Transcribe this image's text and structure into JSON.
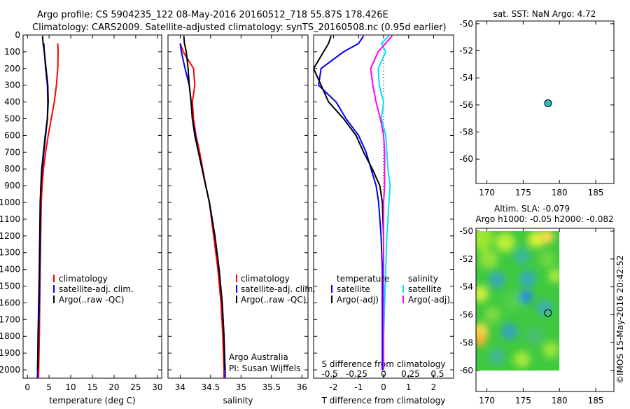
{
  "header": {
    "title_line1": "Argo profile: CS 5904235_122 08-May-2016 20160512_718 55.87S 178.426E",
    "title_line2": "Climatology: CARS2009. Satellite-adjusted climatology: synTS_20160508.nc (0.95d earlier)"
  },
  "colors": {
    "climatology": "#ff0000",
    "satellite": "#0000ff",
    "argo": "#000000",
    "satellite_salinity": "#00e5ee",
    "argo_adj_salinity": "#ff00ff",
    "marker": "#20c0c0"
  },
  "depth_ticks": [
    0,
    100,
    200,
    300,
    400,
    500,
    600,
    700,
    800,
    900,
    1000,
    1100,
    1200,
    1300,
    1400,
    1500,
    1600,
    1700,
    1800,
    1900,
    2000
  ],
  "legends": {
    "profile": [
      "climatology",
      "satellite-adj. clim.",
      "Argo(..raw -QC)"
    ],
    "diff_left_title": "temperature",
    "diff_right_title": "salinity",
    "diff_items": [
      "satellite",
      "Argo(-adj)"
    ]
  },
  "annotations": {
    "argo_australia": "Argo Australia",
    "pi": "PI: Susan Wijffels",
    "imos_stamp": "©IMOS 15-May-2016 20:42:52"
  },
  "chart_data": [
    {
      "type": "line",
      "xlabel": "temperature (deg C)",
      "xlim": [
        -1,
        31
      ],
      "ylim": [
        2050,
        0
      ],
      "xticks": [
        0,
        5,
        10,
        15,
        20,
        25,
        30
      ],
      "series": [
        {
          "name": "climatology",
          "points": [
            [
              7.0,
              50
            ],
            [
              7.1,
              100
            ],
            [
              7.0,
              200
            ],
            [
              6.7,
              300
            ],
            [
              6.2,
              400
            ],
            [
              5.5,
              500
            ],
            [
              4.8,
              600
            ],
            [
              4.2,
              700
            ],
            [
              3.7,
              800
            ],
            [
              3.4,
              900
            ],
            [
              3.2,
              1000
            ],
            [
              3.05,
              1200
            ],
            [
              2.95,
              1400
            ],
            [
              2.85,
              1600
            ],
            [
              2.75,
              1800
            ],
            [
              2.6,
              2000
            ],
            [
              2.55,
              2050
            ]
          ]
        },
        {
          "name": "satellite-adj. clim.",
          "points": [
            [
              3.8,
              50
            ],
            [
              3.9,
              100
            ],
            [
              4.2,
              200
            ],
            [
              4.6,
              300
            ],
            [
              4.7,
              400
            ],
            [
              4.6,
              500
            ],
            [
              4.2,
              600
            ],
            [
              3.8,
              700
            ],
            [
              3.4,
              800
            ],
            [
              3.1,
              900
            ],
            [
              3.0,
              1000
            ],
            [
              2.95,
              1200
            ],
            [
              2.85,
              1400
            ],
            [
              2.75,
              1600
            ],
            [
              2.55,
              1800
            ],
            [
              2.35,
              2000
            ],
            [
              2.3,
              2050
            ]
          ]
        },
        {
          "name": "Argo(..raw -QC)",
          "points": [
            [
              3.5,
              5
            ],
            [
              3.6,
              50
            ],
            [
              3.9,
              100
            ],
            [
              4.3,
              200
            ],
            [
              4.7,
              300
            ],
            [
              4.8,
              400
            ],
            [
              4.6,
              500
            ],
            [
              4.1,
              600
            ],
            [
              3.7,
              700
            ],
            [
              3.3,
              800
            ],
            [
              3.1,
              900
            ],
            [
              2.95,
              1000
            ],
            [
              2.85,
              1200
            ],
            [
              2.75,
              1400
            ],
            [
              2.6,
              1600
            ],
            [
              2.45,
              1800
            ],
            [
              2.35,
              2000
            ]
          ]
        }
      ]
    },
    {
      "type": "line",
      "xlabel": "salinity",
      "xlim": [
        33.8,
        36.1
      ],
      "ylim": [
        2050,
        0
      ],
      "xticks": [
        34,
        34.5,
        35,
        35.5,
        36
      ],
      "series": [
        {
          "name": "climatology",
          "points": [
            [
              34.0,
              50
            ],
            [
              34.05,
              100
            ],
            [
              34.22,
              200
            ],
            [
              34.24,
              300
            ],
            [
              34.2,
              400
            ],
            [
              34.22,
              500
            ],
            [
              34.26,
              600
            ],
            [
              34.32,
              700
            ],
            [
              34.37,
              800
            ],
            [
              34.42,
              900
            ],
            [
              34.48,
              1000
            ],
            [
              34.55,
              1200
            ],
            [
              34.62,
              1400
            ],
            [
              34.67,
              1600
            ],
            [
              34.7,
              1800
            ],
            [
              34.72,
              2000
            ],
            [
              34.72,
              2050
            ]
          ]
        },
        {
          "name": "satellite-adj. clim.",
          "points": [
            [
              34.0,
              50
            ],
            [
              34.02,
              100
            ],
            [
              34.08,
              200
            ],
            [
              34.15,
              300
            ],
            [
              34.18,
              400
            ],
            [
              34.2,
              500
            ],
            [
              34.25,
              600
            ],
            [
              34.3,
              700
            ],
            [
              34.36,
              800
            ],
            [
              34.42,
              900
            ],
            [
              34.48,
              1000
            ],
            [
              34.57,
              1200
            ],
            [
              34.64,
              1400
            ],
            [
              34.69,
              1600
            ],
            [
              34.72,
              1800
            ],
            [
              34.74,
              2000
            ],
            [
              34.74,
              2050
            ]
          ]
        },
        {
          "name": "Argo(..raw -QC)",
          "points": [
            [
              34.06,
              5
            ],
            [
              34.07,
              50
            ],
            [
              34.1,
              100
            ],
            [
              34.13,
              200
            ],
            [
              34.15,
              300
            ],
            [
              34.18,
              400
            ],
            [
              34.2,
              500
            ],
            [
              34.24,
              600
            ],
            [
              34.3,
              700
            ],
            [
              34.36,
              800
            ],
            [
              34.42,
              900
            ],
            [
              34.48,
              1000
            ],
            [
              34.57,
              1200
            ],
            [
              34.64,
              1400
            ],
            [
              34.69,
              1600
            ],
            [
              34.72,
              1800
            ],
            [
              34.73,
              2000
            ]
          ]
        }
      ]
    },
    {
      "type": "line",
      "xlabel_bottom": "T difference from climatology",
      "xlabel_top": "S difference from climatology",
      "xlim_T": [
        -2.8,
        2.8
      ],
      "xticks_T": [
        -2,
        -1,
        0,
        1,
        2
      ],
      "xticks_S": [
        -0.5,
        -0.25,
        0,
        0.25,
        0.5
      ],
      "ylim": [
        2050,
        0
      ],
      "series": [
        {
          "name": "satellite",
          "variable": "temperature",
          "points": [
            [
              -0.8,
              5
            ],
            [
              -1.0,
              50
            ],
            [
              -1.6,
              100
            ],
            [
              -2.5,
              200
            ],
            [
              -2.6,
              300
            ],
            [
              -1.9,
              400
            ],
            [
              -1.5,
              500
            ],
            [
              -1.0,
              600
            ],
            [
              -0.7,
              700
            ],
            [
              -0.5,
              800
            ],
            [
              -0.3,
              900
            ],
            [
              -0.2,
              1000
            ],
            [
              -0.1,
              1200
            ],
            [
              -0.05,
              1400
            ],
            [
              -0.05,
              1600
            ],
            [
              -0.05,
              1800
            ],
            [
              -0.05,
              2000
            ]
          ]
        },
        {
          "name": "Argo(-adj)",
          "variable": "temperature",
          "points": [
            [
              -2.1,
              5
            ],
            [
              -2.2,
              50
            ],
            [
              -2.4,
              100
            ],
            [
              -2.8,
              200
            ],
            [
              -2.5,
              300
            ],
            [
              -2.2,
              400
            ],
            [
              -1.6,
              500
            ],
            [
              -1.1,
              600
            ],
            [
              -0.8,
              700
            ],
            [
              -0.45,
              800
            ],
            [
              -0.15,
              900
            ],
            [
              -0.05,
              1000
            ],
            [
              0.0,
              1200
            ],
            [
              0.0,
              1400
            ],
            [
              0.0,
              1600
            ],
            [
              0.0,
              1800
            ],
            [
              0.0,
              2000
            ]
          ]
        },
        {
          "name": "satellite",
          "variable": "salinity",
          "points": [
            [
              0.05,
              5
            ],
            [
              -0.02,
              50
            ],
            [
              0.02,
              100
            ],
            [
              -0.05,
              200
            ],
            [
              -0.04,
              300
            ],
            [
              0.0,
              400
            ],
            [
              -0.02,
              500
            ],
            [
              0.02,
              600
            ],
            [
              0.03,
              700
            ],
            [
              0.04,
              800
            ],
            [
              0.06,
              900
            ],
            [
              0.05,
              1000
            ],
            [
              0.03,
              1200
            ],
            [
              0.02,
              1400
            ],
            [
              0.01,
              1600
            ],
            [
              0.0,
              1800
            ],
            [
              0.0,
              2000
            ]
          ]
        },
        {
          "name": "Argo(-adj)",
          "variable": "salinity",
          "points": [
            [
              0.08,
              5
            ],
            [
              -0.05,
              100
            ],
            [
              -0.12,
              200
            ],
            [
              -0.1,
              300
            ],
            [
              -0.07,
              400
            ],
            [
              -0.03,
              500
            ],
            [
              0.0,
              600
            ],
            [
              0.01,
              700
            ],
            [
              0.01,
              800
            ],
            [
              0.01,
              900
            ],
            [
              0.0,
              1000
            ],
            [
              0.0,
              1200
            ],
            [
              0.0,
              1400
            ],
            [
              0.0,
              1600
            ],
            [
              0.0,
              1800
            ],
            [
              0.0,
              2000
            ]
          ]
        }
      ]
    },
    {
      "type": "scatter",
      "title": "sat. SST: NaN Argo: 4.72",
      "xlim": [
        168.5,
        187.5
      ],
      "ylim": [
        -61.8,
        -49.8
      ],
      "xticks": [
        170,
        175,
        180,
        185
      ],
      "yticks": [
        -50,
        -52,
        -54,
        -56,
        -58,
        -60
      ],
      "points": [
        [
          178.426,
          -55.87
        ]
      ]
    },
    {
      "type": "heatmap",
      "title_line1": "Altim. SLA: -0.079",
      "title_line2": "Argo h1000: -0.05 h2000: -0.082",
      "xlim": [
        168.5,
        187.5
      ],
      "ylim": [
        -61.5,
        -49.8
      ],
      "xticks": [
        170,
        175,
        180,
        185
      ],
      "yticks": [
        -50,
        -52,
        -54,
        -56,
        -58,
        -60
      ],
      "field_extent": {
        "lon": [
          168.5,
          180.0
        ],
        "lat": [
          -60.0,
          -50.0
        ]
      },
      "points": [
        [
          178.426,
          -55.87
        ]
      ]
    }
  ]
}
